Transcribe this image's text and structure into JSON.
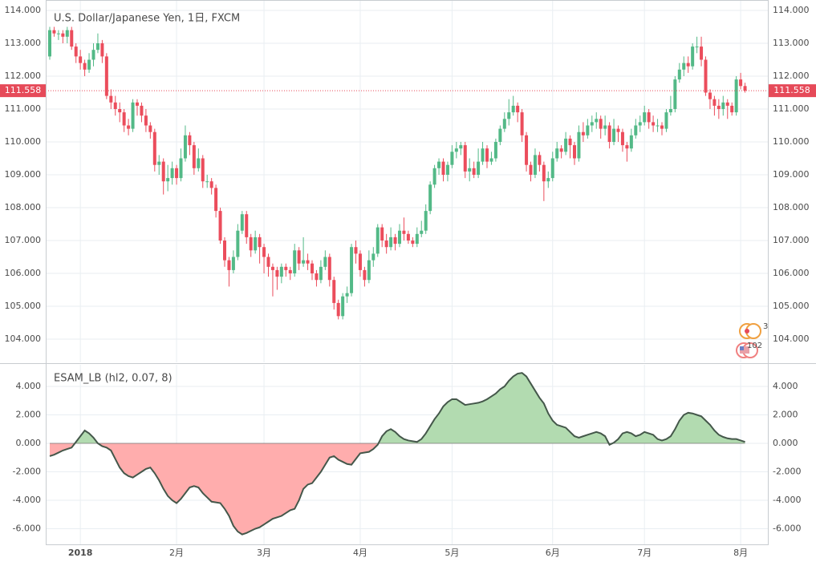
{
  "chart_data": [
    {
      "type": "candlestick",
      "title": "U.S. Dollar/Japanese Yen, 1日, FXCM",
      "categories": [
        null,
        null,
        null,
        null,
        null,
        null,
        null,
        "2018",
        null,
        null,
        null,
        null,
        null,
        null,
        null,
        null,
        null,
        null,
        null,
        null,
        null,
        null,
        null,
        null,
        null,
        null,
        null,
        null,
        null,
        "2月",
        null,
        null,
        null,
        null,
        null,
        null,
        null,
        null,
        null,
        null,
        null,
        null,
        null,
        null,
        null,
        null,
        null,
        null,
        null,
        "3月",
        null,
        null,
        null,
        null,
        null,
        null,
        null,
        null,
        null,
        null,
        null,
        null,
        null,
        null,
        null,
        null,
        null,
        null,
        null,
        null,
        null,
        "4月",
        null,
        null,
        null,
        null,
        null,
        null,
        null,
        null,
        null,
        null,
        null,
        null,
        null,
        null,
        null,
        null,
        null,
        null,
        null,
        null,
        "5月",
        null,
        null,
        null,
        null,
        null,
        null,
        null,
        null,
        null,
        null,
        null,
        null,
        null,
        null,
        null,
        null,
        null,
        null,
        null,
        null,
        null,
        null,
        "6月",
        null,
        null,
        null,
        null,
        null,
        null,
        null,
        null,
        null,
        null,
        null,
        null,
        null,
        null,
        null,
        null,
        null,
        null,
        null,
        null,
        "7月",
        null,
        null,
        null,
        null,
        null,
        null,
        null,
        null,
        null,
        null,
        null,
        null,
        null,
        null,
        null,
        null,
        null,
        null,
        null,
        null,
        null,
        "8月",
        null
      ],
      "open": [
        112.6,
        113.4,
        113.3,
        113.3,
        113.2,
        113.4,
        112.9,
        112.6,
        112.4,
        112.2,
        112.5,
        112.8,
        113.0,
        112.6,
        111.4,
        111.2,
        111.0,
        110.9,
        110.5,
        110.4,
        111.2,
        111.1,
        110.8,
        110.5,
        110.3,
        109.3,
        109.4,
        108.8,
        108.9,
        109.2,
        108.9,
        109.5,
        110.2,
        109.9,
        109.2,
        109.5,
        108.8,
        108.8,
        108.6,
        107.9,
        107.0,
        106.4,
        106.1,
        106.5,
        107.3,
        107.8,
        107.1,
        106.7,
        107.1,
        106.8,
        106.5,
        106.2,
        106.1,
        105.9,
        106.2,
        106.1,
        106.0,
        106.7,
        106.3,
        106.4,
        106.3,
        106.0,
        105.8,
        106.2,
        106.5,
        105.8,
        105.1,
        104.7,
        105.3,
        105.4,
        106.8,
        106.6,
        106.1,
        105.8,
        106.4,
        106.6,
        107.4,
        107.0,
        106.8,
        107.1,
        106.9,
        107.3,
        107.2,
        107.0,
        106.9,
        107.2,
        107.3,
        107.9,
        108.7,
        109.2,
        109.4,
        109.0,
        109.3,
        109.7,
        109.8,
        109.9,
        109.1,
        109.2,
        109.0,
        109.4,
        109.8,
        109.4,
        109.5,
        110.0,
        110.4,
        110.7,
        110.9,
        111.1,
        110.9,
        110.2,
        109.3,
        109.0,
        109.6,
        109.3,
        108.8,
        108.9,
        109.5,
        109.8,
        109.7,
        110.1,
        109.9,
        109.5,
        110.3,
        110.2,
        110.5,
        110.6,
        110.7,
        110.4,
        110.5,
        110.0,
        110.4,
        110.3,
        109.9,
        109.8,
        110.2,
        110.5,
        110.6,
        110.9,
        110.6,
        110.5,
        110.5,
        110.4,
        110.9,
        111.0,
        111.9,
        112.2,
        112.4,
        112.3,
        112.9,
        112.9,
        112.5,
        111.5,
        111.3,
        111.1,
        111.0,
        111.2,
        111.1,
        110.9,
        111.9,
        111.7
      ],
      "high": [
        113.5,
        113.5,
        113.4,
        113.4,
        113.5,
        113.5,
        113.0,
        112.8,
        112.5,
        112.7,
        113.0,
        113.3,
        113.1,
        112.7,
        111.6,
        111.4,
        111.2,
        111.0,
        110.7,
        111.3,
        111.3,
        111.2,
        111.0,
        110.6,
        110.4,
        109.6,
        109.5,
        109.3,
        109.4,
        109.3,
        109.8,
        110.5,
        110.3,
        110.0,
        109.8,
        109.6,
        109.0,
        108.9,
        108.7,
        108.0,
        107.1,
        106.5,
        106.7,
        107.5,
        107.9,
        107.9,
        107.2,
        107.3,
        107.2,
        106.9,
        106.6,
        106.3,
        106.2,
        106.3,
        106.3,
        106.2,
        106.9,
        106.8,
        107.1,
        106.6,
        106.4,
        106.1,
        106.4,
        106.7,
        106.6,
        105.9,
        105.2,
        105.4,
        105.6,
        106.9,
        107.0,
        106.7,
        106.2,
        106.7,
        106.8,
        107.5,
        107.5,
        107.2,
        107.4,
        107.2,
        107.5,
        107.7,
        107.3,
        107.1,
        107.4,
        107.6,
        108.1,
        108.8,
        109.3,
        109.5,
        109.5,
        109.4,
        109.9,
        110.0,
        110.0,
        110.0,
        109.5,
        109.4,
        109.8,
        110.0,
        109.9,
        109.7,
        110.1,
        110.5,
        110.9,
        111.3,
        111.4,
        111.2,
        111.0,
        110.3,
        109.4,
        109.8,
        109.7,
        109.4,
        109.1,
        109.7,
        110.0,
        109.9,
        110.3,
        110.2,
        110.0,
        110.5,
        110.6,
        110.7,
        110.8,
        110.9,
        110.8,
        110.8,
        110.6,
        110.7,
        110.5,
        110.4,
        110.0,
        110.4,
        110.7,
        110.8,
        111.1,
        111.0,
        110.8,
        110.7,
        110.6,
        111.0,
        111.4,
        112.0,
        112.4,
        112.6,
        112.6,
        113.0,
        113.2,
        113.2,
        112.6,
        111.6,
        111.4,
        111.3,
        111.4,
        111.3,
        111.2,
        112.0,
        112.1,
        111.8
      ],
      "low": [
        112.5,
        113.2,
        113.1,
        113.0,
        113.0,
        112.8,
        112.4,
        112.2,
        112.0,
        112.1,
        112.3,
        112.7,
        112.4,
        111.3,
        111.0,
        110.8,
        110.6,
        110.3,
        110.2,
        110.3,
        110.8,
        110.6,
        110.3,
        110.1,
        109.1,
        109.0,
        108.4,
        108.5,
        108.7,
        108.7,
        108.8,
        109.4,
        109.6,
        109.0,
        109.1,
        108.6,
        108.6,
        108.4,
        107.7,
        106.9,
        106.2,
        105.6,
        106.0,
        106.4,
        107.2,
        106.9,
        106.5,
        106.6,
        106.3,
        106.0,
        105.9,
        105.3,
        105.5,
        105.7,
        105.9,
        105.8,
        105.9,
        106.1,
        106.2,
        106.1,
        105.8,
        105.6,
        105.7,
        106.1,
        105.6,
        104.9,
        104.6,
        104.6,
        105.1,
        105.3,
        106.3,
        105.9,
        105.6,
        105.7,
        106.2,
        106.5,
        106.8,
        106.6,
        106.7,
        106.7,
        106.8,
        107.0,
        106.9,
        106.8,
        106.8,
        107.1,
        107.2,
        107.8,
        108.6,
        109.0,
        108.8,
        108.8,
        109.2,
        109.5,
        109.6,
        108.9,
        108.8,
        108.9,
        108.9,
        109.3,
        109.2,
        109.3,
        109.4,
        109.9,
        110.3,
        110.5,
        110.8,
        110.6,
        110.0,
        109.1,
        108.8,
        108.9,
        109.1,
        108.2,
        108.6,
        108.8,
        109.4,
        109.5,
        109.6,
        109.5,
        109.3,
        109.4,
        110.0,
        110.1,
        110.3,
        110.4,
        110.1,
        110.2,
        109.8,
        109.9,
        110.0,
        109.7,
        109.4,
        109.7,
        110.1,
        110.3,
        110.5,
        110.4,
        110.3,
        110.3,
        110.2,
        110.3,
        110.8,
        110.9,
        111.8,
        112.0,
        112.1,
        112.2,
        112.7,
        112.3,
        111.4,
        111.0,
        110.8,
        110.7,
        110.8,
        110.7,
        110.8,
        110.8,
        111.6,
        111.5
      ],
      "close": [
        113.4,
        113.3,
        113.3,
        113.2,
        113.4,
        112.9,
        112.6,
        112.4,
        112.2,
        112.5,
        112.8,
        113.0,
        112.6,
        111.4,
        111.2,
        111.0,
        110.9,
        110.5,
        110.4,
        111.2,
        111.1,
        110.8,
        110.5,
        110.3,
        109.3,
        109.4,
        108.8,
        108.9,
        109.2,
        108.9,
        109.5,
        110.2,
        109.9,
        109.2,
        109.5,
        108.8,
        108.8,
        108.6,
        107.9,
        107.0,
        106.4,
        106.1,
        106.5,
        107.3,
        107.8,
        107.1,
        106.7,
        107.1,
        106.8,
        106.5,
        106.2,
        106.1,
        105.9,
        106.2,
        106.1,
        106.0,
        106.7,
        106.3,
        106.4,
        106.3,
        106.0,
        105.8,
        106.2,
        106.5,
        105.8,
        105.1,
        104.7,
        105.3,
        105.4,
        106.8,
        106.6,
        106.1,
        105.8,
        106.4,
        106.6,
        107.4,
        107.0,
        106.8,
        107.1,
        106.9,
        107.3,
        107.2,
        107.0,
        106.9,
        107.2,
        107.3,
        107.9,
        108.7,
        109.2,
        109.4,
        109.0,
        109.3,
        109.7,
        109.8,
        109.9,
        109.1,
        109.2,
        109.0,
        109.4,
        109.8,
        109.4,
        109.5,
        110.0,
        110.4,
        110.7,
        110.9,
        111.1,
        110.9,
        110.2,
        109.3,
        109.0,
        109.6,
        109.3,
        108.8,
        108.9,
        109.5,
        109.8,
        109.7,
        110.1,
        109.9,
        109.5,
        110.3,
        110.2,
        110.5,
        110.6,
        110.7,
        110.4,
        110.5,
        110.0,
        110.4,
        110.3,
        109.9,
        109.8,
        110.2,
        110.5,
        110.6,
        110.9,
        110.6,
        110.5,
        110.5,
        110.4,
        110.9,
        111.0,
        111.9,
        112.2,
        112.4,
        112.3,
        112.9,
        112.9,
        112.5,
        111.5,
        111.3,
        111.1,
        111.0,
        111.2,
        111.1,
        110.9,
        111.9,
        111.7,
        111.56
      ],
      "up_color": "#53b987",
      "down_color": "#eb4d5c",
      "last_price": 111.558,
      "price_line_color": "#e64a59",
      "ylim": [
        103.293,
        114.317
      ],
      "yticks": [
        {
          "value": 104,
          "label": "104.000"
        },
        {
          "value": 105,
          "label": "105.000"
        },
        {
          "value": 106,
          "label": "106.000"
        },
        {
          "value": 107,
          "label": "107.000"
        },
        {
          "value": 108,
          "label": "108.000"
        },
        {
          "value": 109,
          "label": "109.000"
        },
        {
          "value": 110,
          "label": "110.000"
        },
        {
          "value": 111,
          "label": "111.000"
        },
        {
          "value": 112,
          "label": "112.000"
        },
        {
          "value": 113,
          "label": "113.000"
        },
        {
          "value": 114,
          "label": "114.000"
        }
      ],
      "grid": true,
      "annotations": [
        "3",
        "102"
      ]
    },
    {
      "type": "area",
      "title": "ESAM_LB (hl2, 0.07, 8)",
      "values": [
        -0.9,
        -0.8,
        -0.65,
        -0.5,
        -0.4,
        -0.3,
        0.1,
        0.5,
        0.9,
        0.7,
        0.4,
        0.0,
        -0.2,
        -0.3,
        -0.5,
        -1.1,
        -1.7,
        -2.1,
        -2.3,
        -2.4,
        -2.2,
        -2.0,
        -1.8,
        -1.7,
        -2.1,
        -2.6,
        -3.2,
        -3.7,
        -4.0,
        -4.2,
        -3.9,
        -3.5,
        -3.1,
        -3.0,
        -3.1,
        -3.5,
        -3.8,
        -4.1,
        -4.15,
        -4.2,
        -4.6,
        -5.1,
        -5.8,
        -6.2,
        -6.4,
        -6.3,
        -6.15,
        -6.0,
        -5.9,
        -5.7,
        -5.5,
        -5.3,
        -5.2,
        -5.1,
        -4.9,
        -4.7,
        -4.6,
        -4.0,
        -3.2,
        -2.9,
        -2.8,
        -2.4,
        -2.0,
        -1.5,
        -1.0,
        -0.9,
        -1.15,
        -1.3,
        -1.45,
        -1.5,
        -1.1,
        -0.7,
        -0.65,
        -0.6,
        -0.4,
        -0.1,
        0.5,
        0.85,
        1.0,
        0.8,
        0.5,
        0.3,
        0.2,
        0.15,
        0.1,
        0.3,
        0.7,
        1.2,
        1.7,
        2.1,
        2.6,
        2.9,
        3.1,
        3.1,
        2.9,
        2.7,
        2.75,
        2.8,
        2.85,
        2.95,
        3.1,
        3.3,
        3.5,
        3.8,
        4.0,
        4.4,
        4.7,
        4.9,
        4.95,
        4.7,
        4.2,
        3.7,
        3.2,
        2.8,
        2.1,
        1.6,
        1.3,
        1.2,
        1.1,
        0.8,
        0.5,
        0.4,
        0.5,
        0.6,
        0.7,
        0.8,
        0.7,
        0.5,
        -0.1,
        0.05,
        0.3,
        0.7,
        0.8,
        0.7,
        0.5,
        0.6,
        0.8,
        0.7,
        0.6,
        0.3,
        0.2,
        0.3,
        0.5,
        1.0,
        1.6,
        2.0,
        2.15,
        2.1,
        2.0,
        1.9,
        1.6,
        1.3,
        0.9,
        0.6,
        0.45,
        0.35,
        0.3,
        0.3,
        0.2,
        0.1
      ],
      "line_color": "#44574a",
      "positive_fill": "#b2dbb0",
      "negative_fill": "#ffadad",
      "ylim": [
        -7.155,
        5.521
      ],
      "yticks": [
        {
          "value": -6,
          "label": "-6.000"
        },
        {
          "value": -4,
          "label": "-4.000"
        },
        {
          "value": -2,
          "label": "-2.000"
        },
        {
          "value": 0,
          "label": "0.000"
        },
        {
          "value": 2,
          "label": "2.000"
        },
        {
          "value": 4,
          "label": "4.000"
        }
      ],
      "grid": true
    }
  ]
}
